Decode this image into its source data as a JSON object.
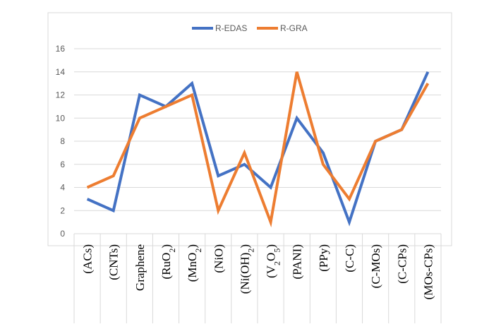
{
  "chart_data": {
    "type": "line",
    "title": "",
    "xlabel": "",
    "ylabel": "",
    "ylim": [
      0,
      16
    ],
    "yticks": [
      0,
      2,
      4,
      6,
      8,
      10,
      12,
      14,
      16
    ],
    "grid": true,
    "legend_position": "top-center",
    "categories": [
      "(ACs)",
      "(CNTs)",
      "Graphene",
      "(RuO2)",
      "(MnO2)",
      "(NiO)",
      "(Ni(OH)2)",
      "(V2O5)",
      "(PANI)",
      "(PPy)",
      "(C-C)",
      "(C-MOs)",
      "(C-CPs)",
      "(MOs-CPs)"
    ],
    "category_labels": [
      {
        "parts": [
          {
            "t": "(ACs)"
          }
        ]
      },
      {
        "parts": [
          {
            "t": "(CNTs)"
          }
        ]
      },
      {
        "parts": [
          {
            "t": "Graphene"
          }
        ]
      },
      {
        "parts": [
          {
            "t": "(RuO"
          },
          {
            "t": "2",
            "sub": true
          },
          {
            "t": ")"
          }
        ]
      },
      {
        "parts": [
          {
            "t": "(MnO"
          },
          {
            "t": "2",
            "sub": true
          },
          {
            "t": ")"
          }
        ]
      },
      {
        "parts": [
          {
            "t": "(NiO)"
          }
        ]
      },
      {
        "parts": [
          {
            "t": "(Ni(OH)"
          },
          {
            "t": "2",
            "sub": true
          },
          {
            "t": ")"
          }
        ]
      },
      {
        "parts": [
          {
            "t": "(V"
          },
          {
            "t": "2",
            "sub": true
          },
          {
            "t": "O"
          },
          {
            "t": "5",
            "sub": true
          },
          {
            "t": ")"
          }
        ]
      },
      {
        "parts": [
          {
            "t": "(PANI)"
          }
        ]
      },
      {
        "parts": [
          {
            "t": "(PPy)"
          }
        ]
      },
      {
        "parts": [
          {
            "t": "(C-C)"
          }
        ]
      },
      {
        "parts": [
          {
            "t": "(C-MOs)"
          }
        ]
      },
      {
        "parts": [
          {
            "t": "(C-CPs)"
          }
        ]
      },
      {
        "parts": [
          {
            "t": "(MOs-CPs)"
          }
        ]
      }
    ],
    "series": [
      {
        "name": "R-EDAS",
        "color": "#4472C4",
        "values": [
          3,
          2,
          12,
          11,
          13,
          5,
          6,
          4,
          10,
          7,
          1,
          8,
          9,
          14
        ]
      },
      {
        "name": "R-GRA",
        "color": "#ED7D31",
        "values": [
          4,
          5,
          10,
          11,
          12,
          2,
          7,
          1,
          14,
          6,
          3,
          8,
          9,
          13
        ]
      }
    ]
  }
}
